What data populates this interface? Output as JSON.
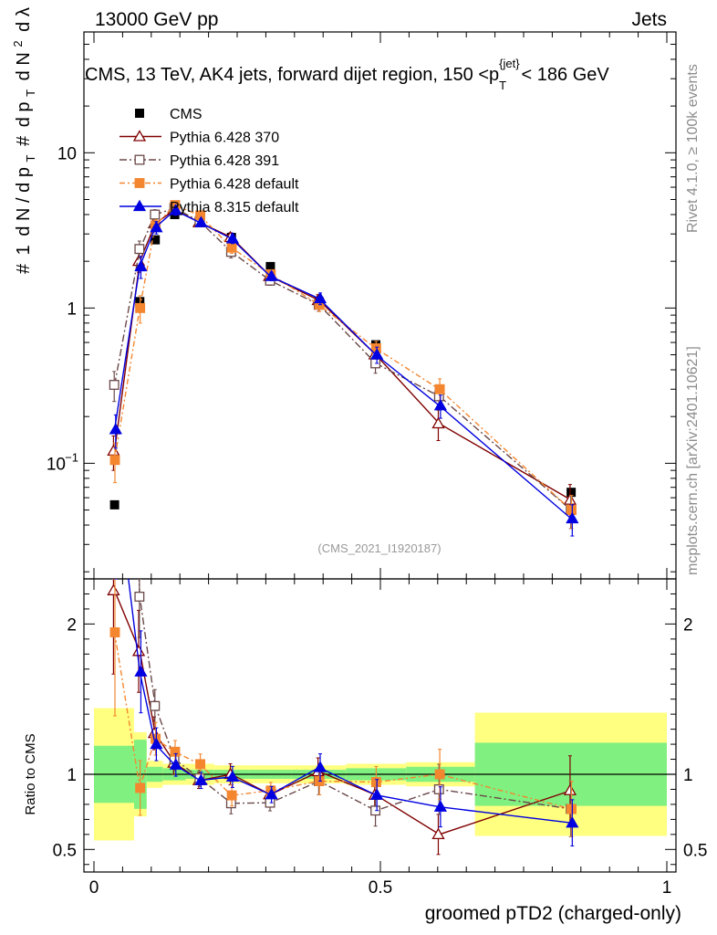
{
  "header": {
    "left": "13000 GeV pp",
    "right": "Jets"
  },
  "side_labels": {
    "rivet": "Rivet 4.1.0, ≥ 100k events",
    "mcplots": "mcplots.cern.ch [arXiv:2401.10621]"
  },
  "chart_data": {
    "type": "scatter",
    "title": "CMS, 13 TeV, AK4 jets, forward dijet region, 150 <p",
    "title_sub": "T",
    "title_sup": "{jet}",
    "title_end": "< 186 GeV",
    "watermark": "(CMS_2021_I1920187)",
    "xlabel": "groomed pTD2 (charged-only)",
    "ylabel_parts": [
      "#",
      "1",
      "d N / d p",
      "T",
      "#",
      "d p",
      "T",
      "d",
      "N",
      "2",
      "d",
      "λ"
    ],
    "ratio_ylabel": "Ratio to CMS",
    "xlim": [
      0,
      1
    ],
    "ylim": [
      0.018,
      60
    ],
    "ratio_ylim": [
      0.35,
      2.3
    ],
    "x_ticks": [
      {
        "v": 0,
        "label": "0"
      },
      {
        "v": 0.5,
        "label": "0.5"
      },
      {
        "v": 1,
        "label": "1"
      }
    ],
    "y_ticks": [
      {
        "v": 0.1,
        "label": "10",
        "sup": "−1"
      },
      {
        "v": 1,
        "label": "1",
        "sup": ""
      },
      {
        "v": 10,
        "label": "10",
        "sup": ""
      }
    ],
    "ratio_ticks": [
      {
        "v": 0.5,
        "label": "0.5"
      },
      {
        "v": 1,
        "label": "1"
      },
      {
        "v": 2,
        "label": "2"
      }
    ],
    "x": [
      0.036,
      0.08,
      0.107,
      0.141,
      0.185,
      0.24,
      0.308,
      0.393,
      0.492,
      0.603,
      0.833
    ],
    "bin_edges": [
      0.0,
      0.07,
      0.092,
      0.12,
      0.16,
      0.21,
      0.27,
      0.345,
      0.44,
      0.545,
      0.665,
      1.0
    ],
    "data": {
      "name": "CMS",
      "color": "#000000",
      "values": [
        0.054,
        1.1,
        2.75,
        4.0,
        3.7,
        2.85,
        1.85,
        1.1,
        0.58,
        0.3,
        0.065
      ]
    },
    "bands": {
      "yellow": "#ffff80",
      "green": "#80f080",
      "stat": [
        0.19,
        0.23,
        0.05,
        0.04,
        0.03,
        0.03,
        0.03,
        0.03,
        0.04,
        0.05,
        0.21
      ],
      "total": [
        0.44,
        0.28,
        0.09,
        0.07,
        0.07,
        0.06,
        0.06,
        0.06,
        0.07,
        0.08,
        0.41
      ]
    },
    "series": [
      {
        "name": "Pythia 6.428 370",
        "color": "#800000",
        "marker": "triangle-open",
        "dash": "",
        "values": [
          0.12,
          2.0,
          3.5,
          4.3,
          3.55,
          2.85,
          1.6,
          1.12,
          0.5,
          0.18,
          0.058
        ],
        "errors": [
          0.03,
          0.3,
          0.3,
          0.3,
          0.2,
          0.2,
          0.1,
          0.1,
          0.06,
          0.04,
          0.015
        ]
      },
      {
        "name": "Pythia 6.428 391",
        "color": "#6b4848",
        "marker": "square-open",
        "dash": "8,3,2,3",
        "values": [
          0.32,
          2.4,
          4.0,
          4.4,
          3.6,
          2.3,
          1.5,
          1.05,
          0.44,
          0.27,
          0.05
        ],
        "errors": [
          0.07,
          0.3,
          0.3,
          0.3,
          0.2,
          0.2,
          0.1,
          0.1,
          0.06,
          0.05,
          0.012
        ]
      },
      {
        "name": "Pythia 6.428 default",
        "color": "#f4862f",
        "marker": "square-filled",
        "dash": "6,3,2,3",
        "values": [
          0.105,
          1.0,
          3.4,
          4.6,
          3.95,
          2.45,
          1.65,
          1.05,
          0.55,
          0.3,
          0.05
        ],
        "errors": [
          0.03,
          0.2,
          0.3,
          0.3,
          0.25,
          0.2,
          0.1,
          0.1,
          0.06,
          0.05,
          0.012
        ]
      },
      {
        "name": "Pythia 8.315 default",
        "color": "#0000e0",
        "marker": "triangle-filled",
        "dash": "",
        "values": [
          0.165,
          1.85,
          3.3,
          4.25,
          3.55,
          2.8,
          1.6,
          1.15,
          0.5,
          0.235,
          0.044
        ],
        "errors": [
          0.04,
          0.3,
          0.3,
          0.3,
          0.2,
          0.2,
          0.1,
          0.1,
          0.06,
          0.04,
          0.01
        ]
      }
    ]
  }
}
